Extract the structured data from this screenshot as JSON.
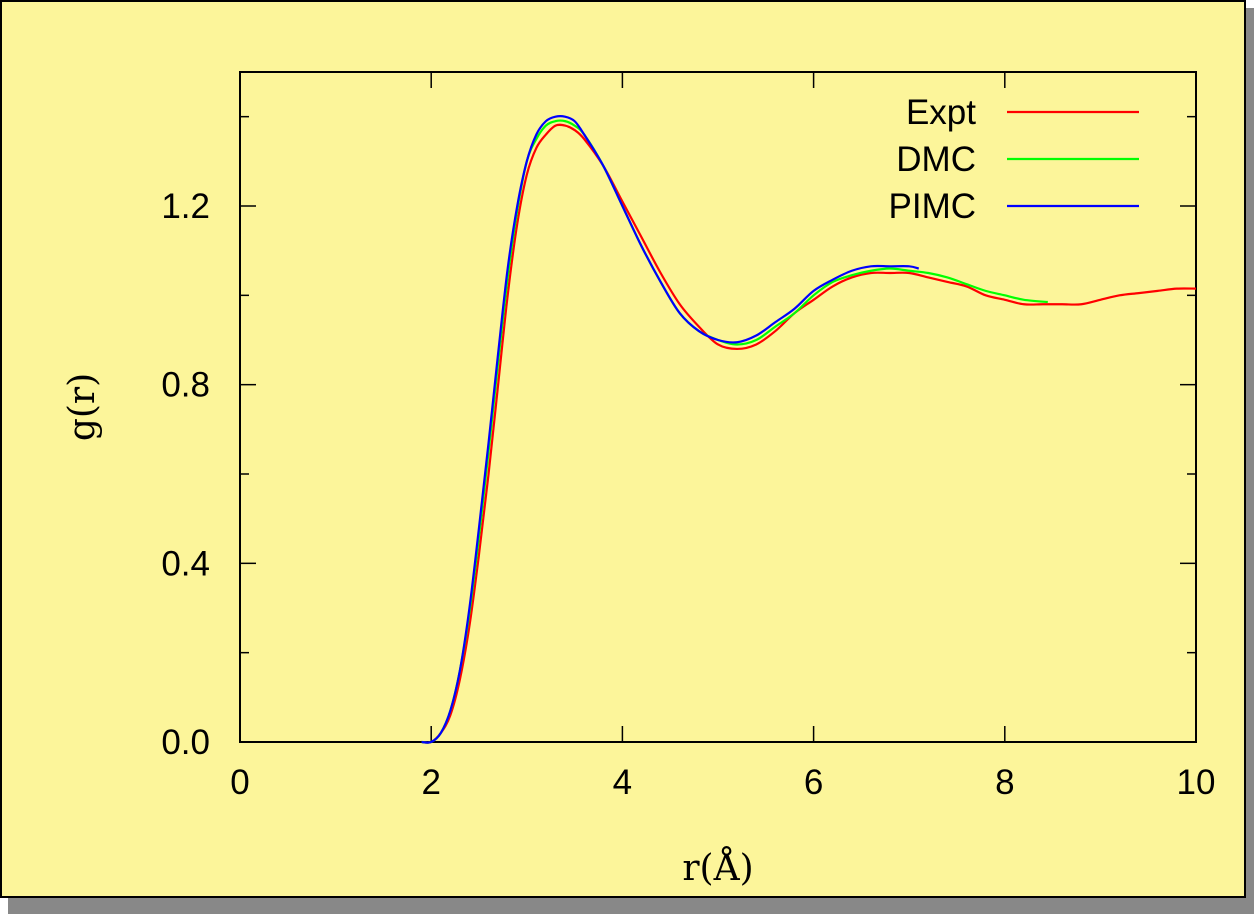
{
  "chart_data": {
    "type": "line",
    "title": "",
    "xlabel": "r(Å)",
    "ylabel": "g(r)",
    "xlim": [
      0,
      10
    ],
    "ylim": [
      0,
      1.5
    ],
    "xticks": [
      0,
      2,
      4,
      6,
      8,
      10
    ],
    "xtick_labels": [
      "0",
      "2",
      "4",
      "6",
      "8",
      "10"
    ],
    "yticks": [
      0.0,
      0.4,
      0.8,
      1.2
    ],
    "ytick_labels": [
      "0.0",
      "0.4",
      "0.8",
      "1.2"
    ],
    "y_minor_ticks": [
      0.2,
      0.6,
      1.0,
      1.4
    ],
    "grid": false,
    "legend_position": "top-right",
    "background_color": "#fcf59a",
    "series": [
      {
        "name": "Expt",
        "color": "#ff0000",
        "x": [
          1.9,
          2.0,
          2.1,
          2.2,
          2.3,
          2.4,
          2.5,
          2.6,
          2.7,
          2.8,
          2.9,
          3.0,
          3.1,
          3.2,
          3.3,
          3.4,
          3.5,
          3.6,
          3.8,
          4.0,
          4.2,
          4.4,
          4.6,
          4.8,
          5.0,
          5.2,
          5.4,
          5.6,
          5.8,
          6.0,
          6.2,
          6.4,
          6.6,
          6.8,
          7.0,
          7.2,
          7.4,
          7.6,
          7.8,
          8.0,
          8.2,
          8.4,
          8.6,
          8.8,
          9.0,
          9.2,
          9.4,
          9.6,
          9.8,
          10.0
        ],
        "y": [
          0.0,
          0.0,
          0.02,
          0.06,
          0.14,
          0.26,
          0.42,
          0.6,
          0.8,
          1.0,
          1.16,
          1.27,
          1.33,
          1.36,
          1.38,
          1.38,
          1.37,
          1.35,
          1.29,
          1.21,
          1.13,
          1.05,
          0.98,
          0.93,
          0.89,
          0.88,
          0.89,
          0.92,
          0.96,
          0.99,
          1.02,
          1.04,
          1.05,
          1.05,
          1.05,
          1.04,
          1.03,
          1.02,
          1.0,
          0.99,
          0.98,
          0.98,
          0.98,
          0.98,
          0.99,
          1.0,
          1.005,
          1.01,
          1.015,
          1.015
        ]
      },
      {
        "name": "DMC",
        "color": "#00ff00",
        "x": [
          1.9,
          2.0,
          2.1,
          2.2,
          2.3,
          2.4,
          2.5,
          2.6,
          2.7,
          2.8,
          2.9,
          3.0,
          3.1,
          3.2,
          3.3,
          3.4,
          3.5,
          3.6,
          3.8,
          4.0,
          4.2,
          4.4,
          4.6,
          4.8,
          5.0,
          5.2,
          5.4,
          5.6,
          5.8,
          6.0,
          6.2,
          6.4,
          6.6,
          6.8,
          7.0,
          7.2,
          7.4,
          7.6,
          7.8,
          8.0,
          8.2,
          8.45
        ],
        "y": [
          0.0,
          0.0,
          0.02,
          0.07,
          0.16,
          0.29,
          0.46,
          0.65,
          0.85,
          1.04,
          1.19,
          1.3,
          1.35,
          1.38,
          1.39,
          1.39,
          1.38,
          1.36,
          1.29,
          1.2,
          1.11,
          1.03,
          0.96,
          0.92,
          0.9,
          0.89,
          0.9,
          0.93,
          0.96,
          1.0,
          1.03,
          1.045,
          1.055,
          1.06,
          1.055,
          1.05,
          1.04,
          1.025,
          1.01,
          1.0,
          0.99,
          0.985
        ]
      },
      {
        "name": "PIMC",
        "color": "#0000ff",
        "x": [
          1.9,
          2.0,
          2.1,
          2.2,
          2.3,
          2.4,
          2.5,
          2.6,
          2.7,
          2.8,
          2.9,
          3.0,
          3.1,
          3.2,
          3.3,
          3.4,
          3.5,
          3.6,
          3.8,
          4.0,
          4.2,
          4.4,
          4.6,
          4.8,
          5.0,
          5.2,
          5.4,
          5.6,
          5.8,
          6.0,
          6.2,
          6.4,
          6.6,
          6.8,
          7.0,
          7.1
        ],
        "y": [
          0.0,
          0.0,
          0.02,
          0.07,
          0.16,
          0.3,
          0.48,
          0.67,
          0.87,
          1.06,
          1.2,
          1.3,
          1.36,
          1.39,
          1.4,
          1.4,
          1.39,
          1.36,
          1.29,
          1.2,
          1.11,
          1.03,
          0.96,
          0.92,
          0.9,
          0.895,
          0.91,
          0.94,
          0.97,
          1.01,
          1.035,
          1.055,
          1.065,
          1.065,
          1.065,
          1.06
        ]
      }
    ]
  }
}
